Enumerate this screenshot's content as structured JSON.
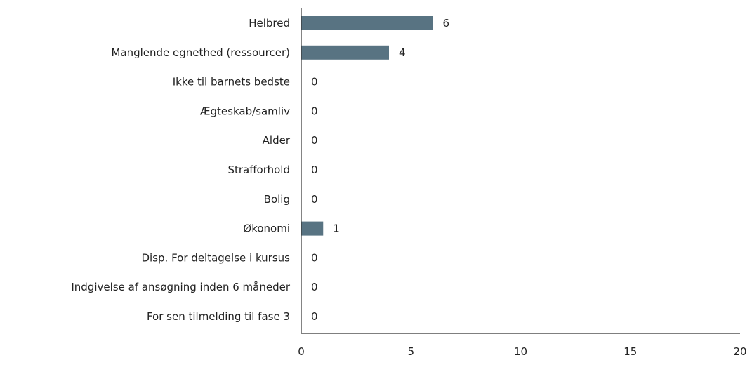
{
  "chart_data": {
    "type": "bar",
    "orientation": "horizontal",
    "categories": [
      "Helbred",
      "Manglende egnethed (ressourcer)",
      "Ikke til barnets bedste",
      "Ægteskab/samliv",
      "Alder",
      "Strafforhold",
      "Bolig",
      "Økonomi",
      "Disp. For deltagelse i kursus",
      "Indgivelse af ansøgning inden 6 måneder",
      "For sen tilmelding til fase 3"
    ],
    "values": [
      6,
      4,
      0,
      0,
      0,
      0,
      0,
      1,
      0,
      0,
      0
    ],
    "xlim": [
      0,
      20
    ],
    "xticks": [
      0,
      5,
      10,
      15,
      20
    ],
    "bar_color": "#587382",
    "grid": false,
    "legend": "none"
  }
}
